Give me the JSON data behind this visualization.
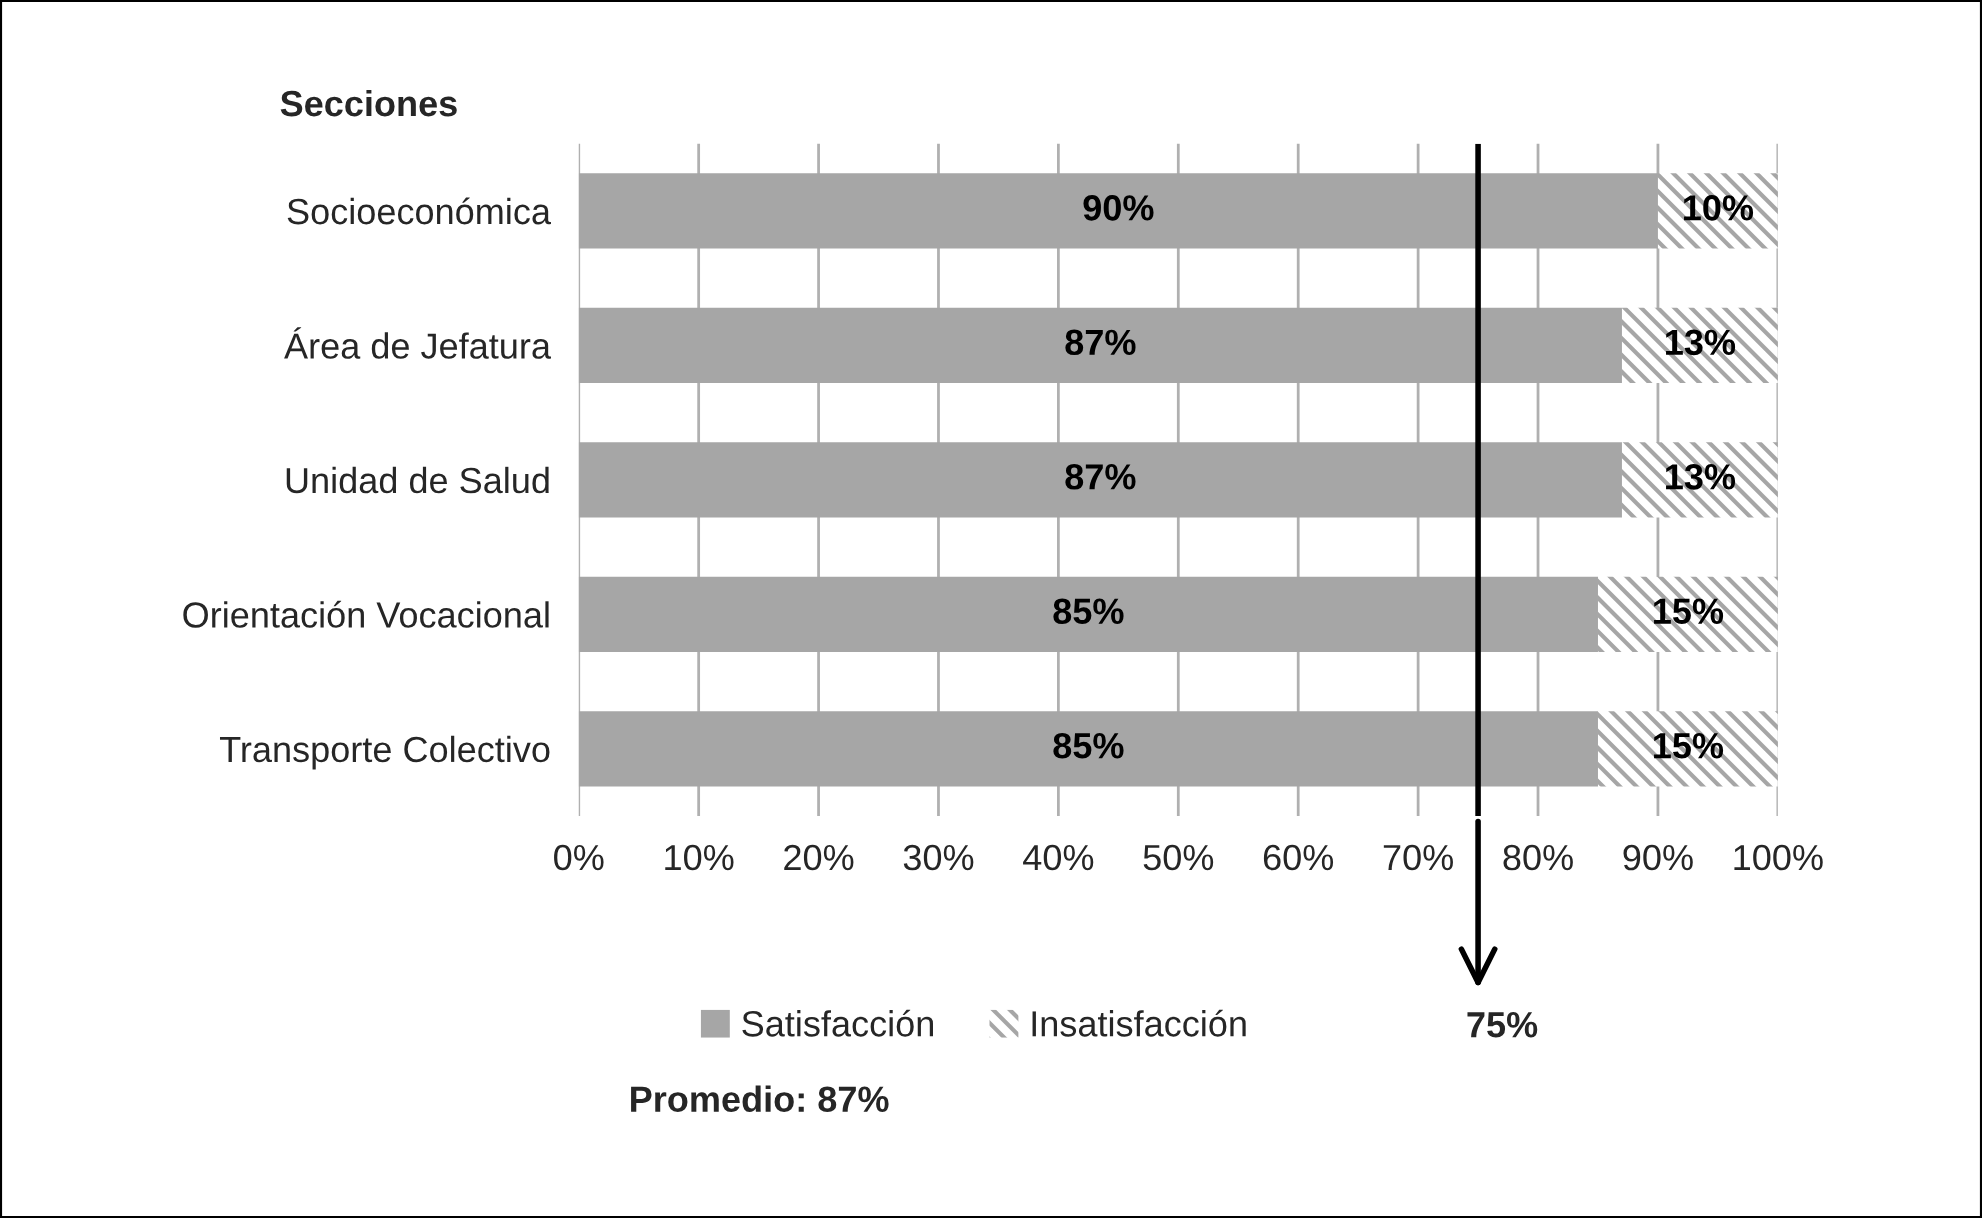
{
  "chart_data": {
    "type": "bar",
    "orientation": "horizontal",
    "stacked": true,
    "ylabel": "Secciones",
    "categories": [
      "Socioeconómica",
      "Área de Jefatura",
      "Unidad de Salud",
      "Orientación Vocacional",
      "Transporte Colectivo"
    ],
    "series": [
      {
        "name": "Satisfacción",
        "color": "#a6a6a6",
        "values": [
          90,
          87,
          87,
          85,
          85
        ],
        "value_labels": [
          "90%",
          "87%",
          "87%",
          "85%",
          "85%"
        ]
      },
      {
        "name": "Insatisfacción",
        "color": "#a6a6a6",
        "values": [
          10,
          13,
          13,
          15,
          15
        ],
        "value_labels": [
          "10%",
          "13%",
          "13%",
          "15%",
          "15%"
        ]
      }
    ],
    "xlim": [
      0,
      100
    ],
    "xticks": [
      {
        "value": 0,
        "label": "0%"
      },
      {
        "value": 10,
        "label": "10%"
      },
      {
        "value": 20,
        "label": "20%"
      },
      {
        "value": 30,
        "label": "30%"
      },
      {
        "value": 40,
        "label": "40%"
      },
      {
        "value": 50,
        "label": "50%"
      },
      {
        "value": 60,
        "label": "60%"
      },
      {
        "value": 70,
        "label": "70%"
      },
      {
        "value": 80,
        "label": "80%"
      },
      {
        "value": 90,
        "label": "90%"
      },
      {
        "value": 100,
        "label": "100%"
      }
    ],
    "ref_lines": [
      {
        "axis": "x",
        "value": 75,
        "label": "75%",
        "color": "#000000"
      }
    ],
    "annotations": [
      "Promedio: 87%"
    ],
    "grid": "x",
    "legend": "bottom"
  }
}
